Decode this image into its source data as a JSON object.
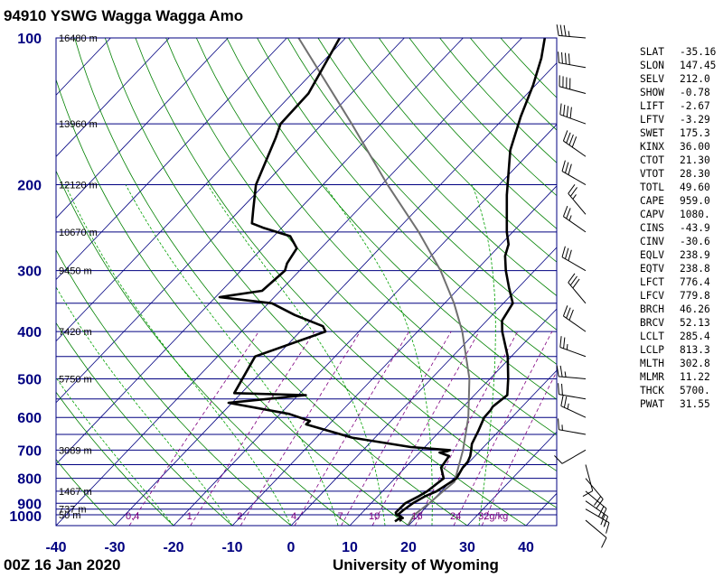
{
  "header": {
    "title": "94910 YSWG Wagga Wagga Amo"
  },
  "footer": {
    "time": "00Z 16 Jan 2020",
    "source": "University of Wyoming"
  },
  "indices": [
    {
      "name": "SLAT",
      "value": "-35.16"
    },
    {
      "name": "SLON",
      "value": "147.45"
    },
    {
      "name": "SELV",
      "value": "212.0"
    },
    {
      "name": "SHOW",
      "value": "-0.78"
    },
    {
      "name": "LIFT",
      "value": "-2.67"
    },
    {
      "name": "LFTV",
      "value": "-3.29"
    },
    {
      "name": "SWET",
      "value": "175.3"
    },
    {
      "name": "KINX",
      "value": "36.00"
    },
    {
      "name": "CTOT",
      "value": "21.30"
    },
    {
      "name": "VTOT",
      "value": "28.30"
    },
    {
      "name": "TOTL",
      "value": "49.60"
    },
    {
      "name": "CAPE",
      "value": "959.0"
    },
    {
      "name": "CAPV",
      "value": "1080."
    },
    {
      "name": "CINS",
      "value": "-43.9"
    },
    {
      "name": "CINV",
      "value": "-30.6"
    },
    {
      "name": "EQLV",
      "value": "238.9"
    },
    {
      "name": "EQTV",
      "value": "238.8"
    },
    {
      "name": "LFCT",
      "value": "776.4"
    },
    {
      "name": "LFCV",
      "value": "779.8"
    },
    {
      "name": "BRCH",
      "value": "46.26"
    },
    {
      "name": "BRCV",
      "value": "52.13"
    },
    {
      "name": "LCLT",
      "value": "285.4"
    },
    {
      "name": "LCLP",
      "value": "813.3"
    },
    {
      "name": "MLTH",
      "value": "302.8"
    },
    {
      "name": "MLMR",
      "value": "11.22"
    },
    {
      "name": "THCK",
      "value": "5700."
    },
    {
      "name": "PWAT",
      "value": "31.55"
    }
  ],
  "chart_data": {
    "type": "skew-t log-p",
    "x_axis": {
      "unit": "°C",
      "ticks": [
        -40,
        -30,
        -20,
        -10,
        0,
        10,
        20,
        30,
        40
      ],
      "range": [
        -40,
        45
      ]
    },
    "y_axis": {
      "unit": "hPa",
      "scale": "log",
      "range": [
        1000,
        100
      ],
      "labeled_ticks": [
        100,
        200,
        300,
        400,
        500,
        600,
        700,
        800,
        900,
        1000
      ]
    },
    "isobars_hpa": [
      100,
      150,
      200,
      250,
      300,
      350,
      400,
      450,
      500,
      550,
      600,
      650,
      700,
      750,
      800,
      850,
      900,
      925,
      950,
      1000
    ],
    "height_labels": [
      {
        "p": 100,
        "text": "16480 m"
      },
      {
        "p": 150,
        "text": "13960 m"
      },
      {
        "p": 200,
        "text": "12120 m"
      },
      {
        "p": 250,
        "text": "10670 m"
      },
      {
        "p": 300,
        "text": "9450 m"
      },
      {
        "p": 400,
        "text": "7420 m"
      },
      {
        "p": 500,
        "text": "5750 m"
      },
      {
        "p": 700,
        "text": "3089 m"
      },
      {
        "p": 850,
        "text": "1467 m"
      },
      {
        "p": 925,
        "text": "737 m"
      },
      {
        "p": 1000,
        "text": "50 m"
      }
    ],
    "mixing_ratio_labels": [
      "0.4",
      "1",
      "2",
      "4",
      "7",
      "10",
      "16",
      "24",
      "32g/kg"
    ],
    "mixing_ratio_gkg": [
      0.4,
      1,
      2,
      4,
      7,
      10,
      16,
      24,
      32
    ],
    "temperature": [
      [
        980,
        18.0
      ],
      [
        970,
        17.5
      ],
      [
        965,
        17.8
      ],
      [
        955,
        16.9
      ],
      [
        950,
        16.4
      ],
      [
        930,
        16.6
      ],
      [
        900,
        17.1
      ],
      [
        870,
        18.1
      ],
      [
        850,
        19.2
      ],
      [
        800,
        20.5
      ],
      [
        760,
        19.8
      ],
      [
        740,
        19.7
      ],
      [
        720,
        19.2
      ],
      [
        700,
        18.4
      ],
      [
        680,
        17.5
      ],
      [
        640,
        16.5
      ],
      [
        600,
        15.3
      ],
      [
        580,
        15.2
      ],
      [
        570,
        15.0
      ],
      [
        540,
        15.6
      ],
      [
        500,
        13.1
      ],
      [
        450,
        9.4
      ],
      [
        400,
        4.4
      ],
      [
        380,
        2.6
      ],
      [
        350,
        1.6
      ],
      [
        325,
        -1.6
      ],
      [
        300,
        -4.9
      ],
      [
        280,
        -7.4
      ],
      [
        265,
        -8.7
      ],
      [
        250,
        -11.0
      ],
      [
        210,
        -17.0
      ],
      [
        170,
        -23.7
      ],
      [
        145,
        -27.4
      ],
      [
        125,
        -30.4
      ],
      [
        110,
        -33.4
      ],
      [
        100,
        -36.1
      ]
    ],
    "dewpoint": [
      [
        980,
        17.0
      ],
      [
        960,
        17.4
      ],
      [
        950,
        16.2
      ],
      [
        940,
        15.7
      ],
      [
        900,
        15.8
      ],
      [
        870,
        17.0
      ],
      [
        850,
        17.6
      ],
      [
        800,
        18.3
      ],
      [
        760,
        16.1
      ],
      [
        720,
        15.6
      ],
      [
        708,
        13.4
      ],
      [
        704,
        14.5
      ],
      [
        700,
        14.8
      ],
      [
        690,
        7.6
      ],
      [
        660,
        -3.9
      ],
      [
        620,
        -13.9
      ],
      [
        610,
        -13.8
      ],
      [
        590,
        -18.5
      ],
      [
        560,
        -30.6
      ],
      [
        540,
        -18.7
      ],
      [
        535,
        -31.2
      ],
      [
        450,
        -33.6
      ],
      [
        400,
        -25.7
      ],
      [
        390,
        -27.0
      ],
      [
        370,
        -33.6
      ],
      [
        350,
        -39.4
      ],
      [
        340,
        -49.3
      ],
      [
        330,
        -43.1
      ],
      [
        300,
        -42.5
      ],
      [
        290,
        -43.3
      ],
      [
        270,
        -44.1
      ],
      [
        255,
        -47.2
      ],
      [
        245,
        -53.2
      ],
      [
        240,
        -55.8
      ],
      [
        225,
        -57.8
      ],
      [
        200,
        -61.4
      ],
      [
        160,
        -65.7
      ],
      [
        150,
        -67.1
      ],
      [
        130,
        -67.3
      ],
      [
        100,
        -71.0
      ]
    ],
    "parcel": [
      [
        1000,
        19.9
      ],
      [
        950,
        19.2
      ],
      [
        900,
        19.9
      ],
      [
        850,
        20.3
      ],
      [
        813,
        20.7
      ],
      [
        700,
        17.0
      ],
      [
        600,
        12.6
      ],
      [
        500,
        6.5
      ],
      [
        400,
        -2.4
      ],
      [
        350,
        -8.4
      ],
      [
        300,
        -16.0
      ],
      [
        250,
        -26.0
      ],
      [
        200,
        -39.0
      ],
      [
        150,
        -55.0
      ],
      [
        100,
        -78.0
      ]
    ],
    "wind_barbs": [
      {
        "p": 975,
        "dir": 130,
        "kt": 10
      },
      {
        "p": 925,
        "dir": 120,
        "kt": 15
      },
      {
        "p": 890,
        "dir": 125,
        "kt": 20
      },
      {
        "p": 850,
        "dir": 130,
        "kt": 20
      },
      {
        "p": 800,
        "dir": 140,
        "kt": 20
      },
      {
        "p": 750,
        "dir": 165,
        "kt": 10
      },
      {
        "p": 700,
        "dir": 240,
        "kt": 10
      },
      {
        "p": 650,
        "dir": 280,
        "kt": 15
      },
      {
        "p": 600,
        "dir": 295,
        "kt": 25
      },
      {
        "p": 550,
        "dir": 280,
        "kt": 20
      },
      {
        "p": 500,
        "dir": 275,
        "kt": 25
      },
      {
        "p": 450,
        "dir": 290,
        "kt": 25
      },
      {
        "p": 400,
        "dir": 305,
        "kt": 30
      },
      {
        "p": 350,
        "dir": 320,
        "kt": 30
      },
      {
        "p": 300,
        "dir": 300,
        "kt": 30
      },
      {
        "p": 250,
        "dir": 305,
        "kt": 25
      },
      {
        "p": 230,
        "dir": 320,
        "kt": 25
      },
      {
        "p": 200,
        "dir": 300,
        "kt": 30
      },
      {
        "p": 175,
        "dir": 305,
        "kt": 40
      },
      {
        "p": 150,
        "dir": 290,
        "kt": 40
      },
      {
        "p": 130,
        "dir": 285,
        "kt": 40
      },
      {
        "p": 115,
        "dir": 280,
        "kt": 40
      },
      {
        "p": 100,
        "dir": 275,
        "kt": 35
      }
    ],
    "colors": {
      "isobar": "#000080",
      "isotherm": "#000080",
      "dry_adiabat": "#008000",
      "moist_adiabat": "#00a000",
      "mixing_ratio": "#800080",
      "temperature": "#000000",
      "dewpoint": "#000000",
      "parcel": "#707070",
      "axis_labels": "#000080"
    }
  }
}
